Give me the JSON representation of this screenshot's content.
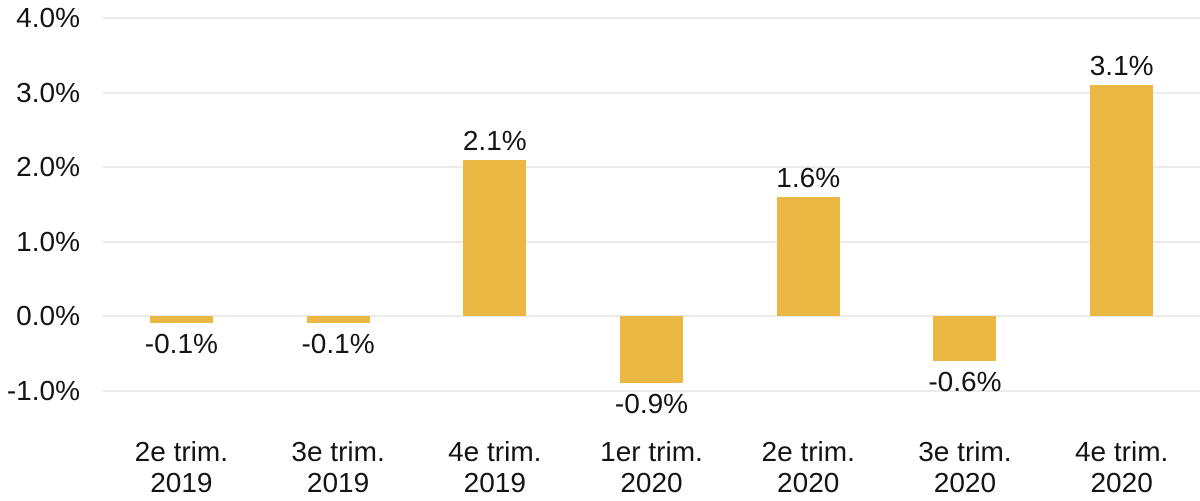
{
  "chart_data": {
    "type": "bar",
    "title": "",
    "xlabel": "",
    "ylabel": "",
    "categories": [
      {
        "line1": "2e trim.",
        "line2": "2019"
      },
      {
        "line1": "3e trim.",
        "line2": "2019"
      },
      {
        "line1": "4e trim.",
        "line2": "2019"
      },
      {
        "line1": "1er trim.",
        "line2": "2020"
      },
      {
        "line1": "2e trim.",
        "line2": "2020"
      },
      {
        "line1": "3e trim.",
        "line2": "2020"
      },
      {
        "line1": "4e trim.",
        "line2": "2020"
      }
    ],
    "values": [
      -0.1,
      -0.1,
      2.1,
      -0.9,
      1.6,
      -0.6,
      3.1
    ],
    "value_labels": [
      "-0.1%",
      "-0.1%",
      "2.1%",
      "-0.9%",
      "1.6%",
      "-0.6%",
      "3.1%"
    ],
    "y_ticks": [
      {
        "value": 4.0,
        "label": "4.0%"
      },
      {
        "value": 3.0,
        "label": "3.0%"
      },
      {
        "value": 2.0,
        "label": "2.0%"
      },
      {
        "value": 1.0,
        "label": "1.0%"
      },
      {
        "value": 0.0,
        "label": "0.0%"
      },
      {
        "value": -1.0,
        "label": "-1.0%"
      }
    ],
    "ylim": [
      -1.0,
      4.0
    ],
    "grid": true,
    "legend": "none",
    "colors": {
      "bar": "#EBB844",
      "text": "#141414",
      "gridline": "#EBEBEB",
      "background": "#FFFFFF"
    }
  }
}
